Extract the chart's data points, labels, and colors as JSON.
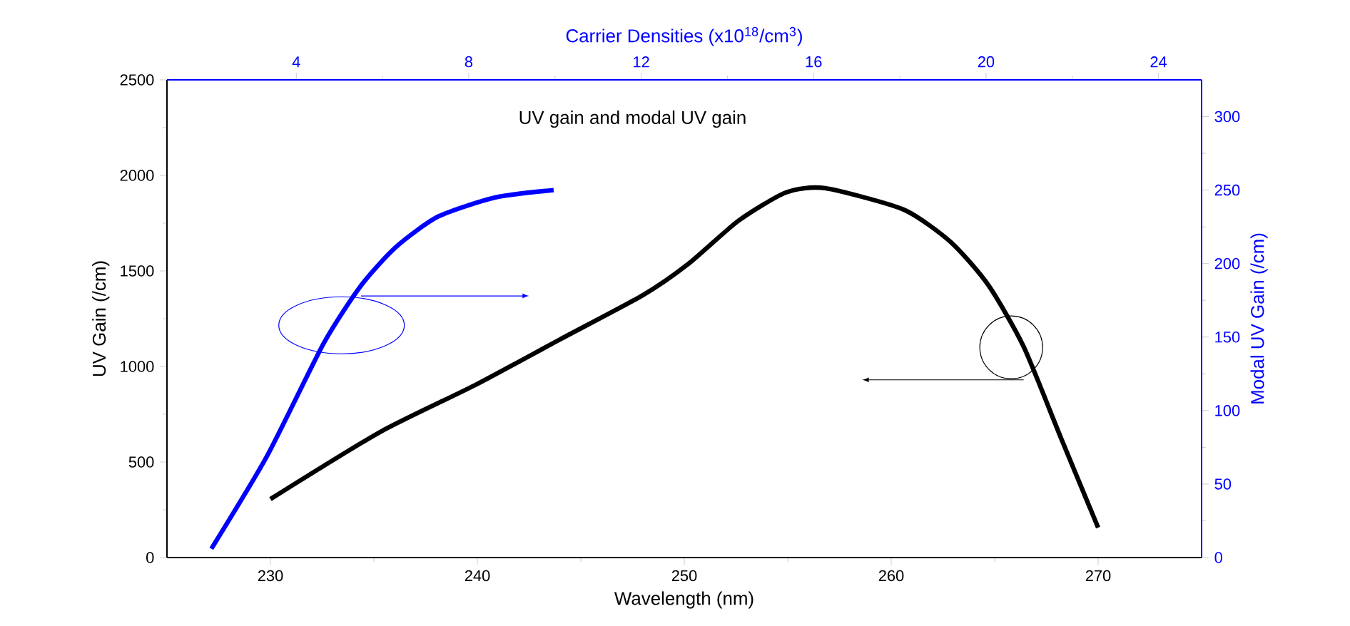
{
  "chart_data": [
    {
      "type": "line",
      "title": "UV gain and modal UV gain",
      "xlabel": "Wavelength (nm)",
      "ylabel": "UV Gain (/cm)",
      "xlim": [
        225,
        275
      ],
      "xticks": [
        230,
        240,
        250,
        260,
        270
      ],
      "ylim": [
        0,
        2500
      ],
      "yticks": [
        0,
        500,
        1000,
        1500,
        2000,
        2500
      ],
      "grid": false,
      "line_style": "solid",
      "marker": "none",
      "series": [
        {
          "color": "#000000",
          "x": [
            230,
            235.3,
            239.9,
            244.0,
            248.0,
            250.2,
            252.6,
            254.9,
            256.8,
            260.6,
            262.9,
            264.7,
            266.4,
            268.2,
            270
          ],
          "values": [
            306,
            657,
            903,
            1142,
            1373,
            1537,
            1761,
            1910,
            1933,
            1821,
            1649,
            1425,
            1104,
            627,
            157
          ]
        }
      ]
    },
    {
      "type": "line",
      "xlabel": "Carrier Densities (x10$^{18}$/cm$^{3}$)",
      "ylabel": "Modal UV Gain (/cm)",
      "xlim": [
        1,
        25
      ],
      "xticks": [
        4,
        8,
        12,
        16,
        20,
        24
      ],
      "ylim": [
        0,
        325
      ],
      "yticks": [
        0,
        50,
        100,
        150,
        200,
        250,
        300
      ],
      "grid": false,
      "line_style": "solid",
      "marker": "none",
      "series": [
        {
          "color": "#0000ff",
          "x": [
            2.03,
            3.32,
            4.64,
            5.5,
            6.3,
            7.29,
            8.62,
            9.97
          ],
          "values": [
            6,
            69,
            146,
            185,
            211,
            232,
            245,
            250
          ]
        }
      ]
    }
  ]
}
